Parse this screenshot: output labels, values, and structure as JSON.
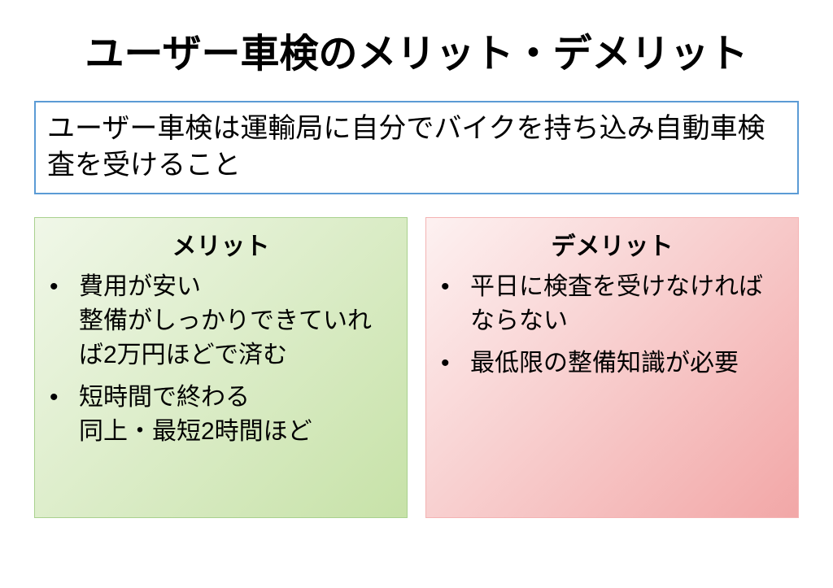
{
  "title": "ユーザー車検のメリット・デメリット",
  "subtitle": "ユーザー車検は運輸局に自分でバイクを持ち込み自動車検査を受けること",
  "subtitle_border_color": "#5b9bd5",
  "panels": {
    "merit": {
      "heading": "メリット",
      "border_color": "#a9d18e",
      "gradient_from": "#f0f7e8",
      "gradient_to": "#c7e2a8",
      "items": [
        "費用が安い\n整備がしっかりできていれば2万円ほどで済む",
        "短時間で終わる\n同上・最短2時間ほど"
      ]
    },
    "demerit": {
      "heading": "デメリット",
      "border_color": "#f4b3b3",
      "gradient_from": "#fdf1f1",
      "gradient_to": "#f2a7a7",
      "items": [
        "平日に検査を受けなければならない",
        "最低限の整備知識が必要"
      ]
    }
  },
  "bullet_char": "•",
  "text_color": "#000000"
}
